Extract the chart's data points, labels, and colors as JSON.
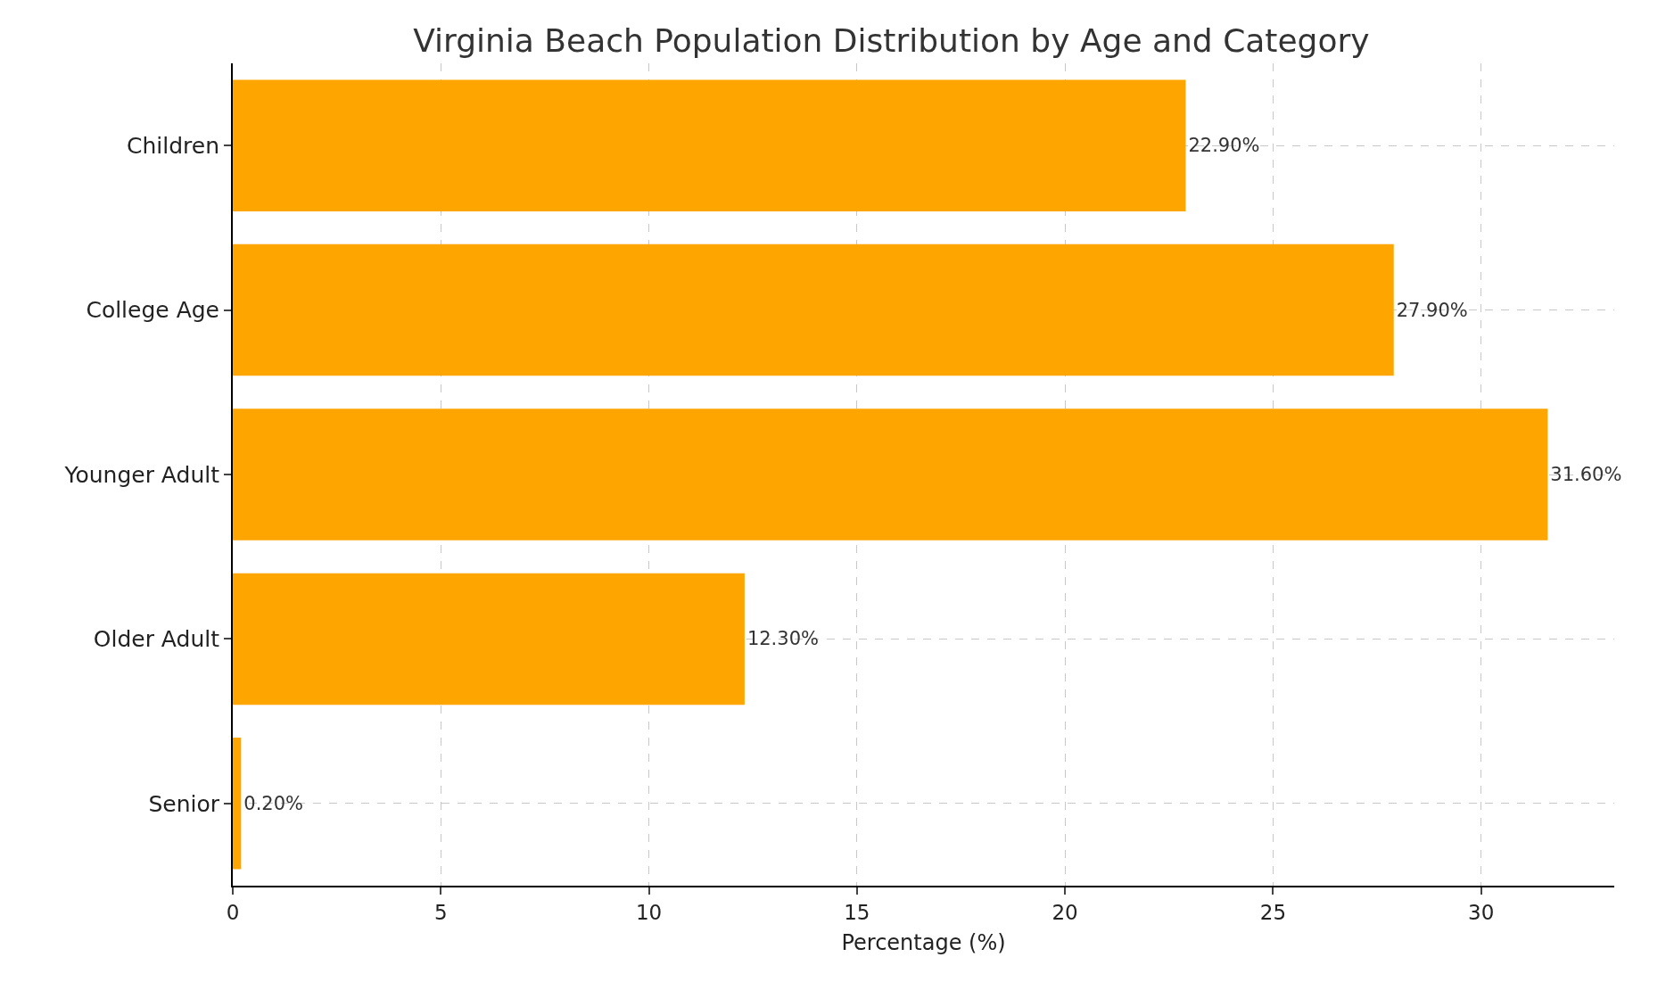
{
  "chart_data": {
    "type": "bar",
    "orientation": "horizontal",
    "title": "Virginia Beach Population Distribution by Age and Category",
    "xlabel": "Percentage (%)",
    "categories": [
      "Children",
      "College Age",
      "Younger Adult",
      "Older Adult",
      "Senior"
    ],
    "values": [
      22.9,
      27.9,
      31.6,
      12.3,
      0.2
    ],
    "value_labels": [
      "22.90%",
      "27.90%",
      "31.60%",
      "12.30%",
      "0.20%"
    ],
    "color": "#ffa500",
    "xlim": [
      0,
      33.2
    ],
    "xticks": [
      0,
      5,
      10,
      15,
      20,
      25,
      30
    ],
    "grid": true,
    "line_style": "dashed"
  }
}
